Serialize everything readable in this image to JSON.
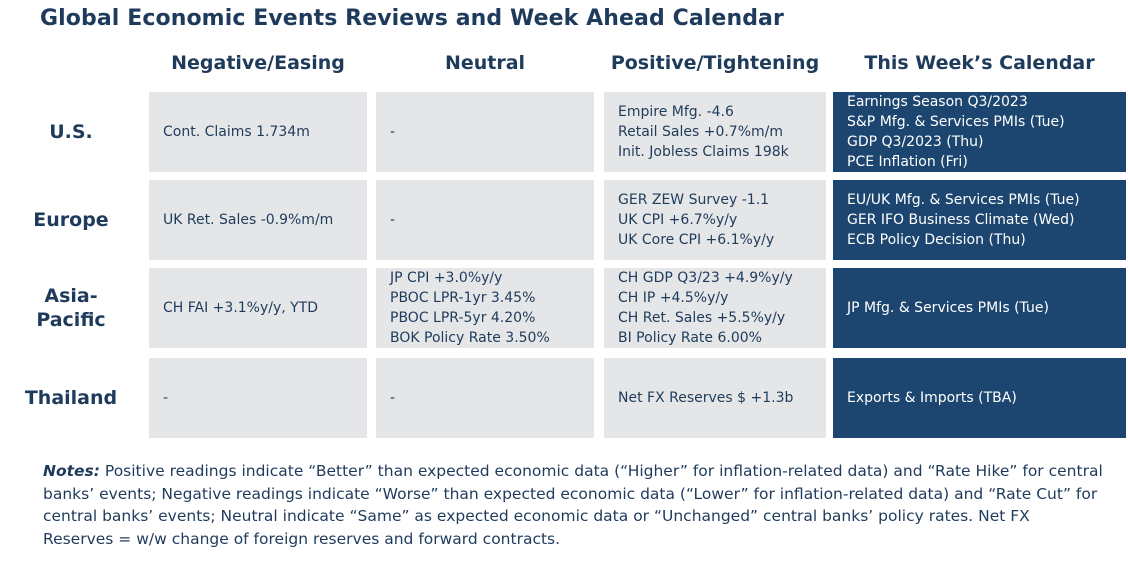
{
  "title": "Global Economic Events Reviews and Week Ahead Calendar",
  "columns": [
    "Negative/Easing",
    "Neutral",
    "Positive/Tightening",
    "This Week’s Calendar"
  ],
  "rows": [
    {
      "region": "U.S.",
      "negative": [
        "Cont. Claims 1.734m"
      ],
      "neutral": [
        "-"
      ],
      "positive": [
        "Empire Mfg. -4.6",
        "Retail Sales +0.7%m/m",
        "Init. Jobless Claims 198k"
      ],
      "calendar": [
        "Earnings Season Q3/2023",
        "S&P Mfg. & Services PMIs (Tue)",
        "GDP Q3/2023 (Thu)",
        "PCE Inflation (Fri)"
      ]
    },
    {
      "region": "Europe",
      "negative": [
        "UK Ret. Sales -0.9%m/m"
      ],
      "neutral": [
        "-"
      ],
      "positive": [
        "GER ZEW Survey -1.1",
        "UK CPI +6.7%y/y",
        "UK Core CPI +6.1%y/y"
      ],
      "calendar": [
        "EU/UK Mfg. & Services PMIs (Tue)",
        "GER IFO Business Climate (Wed)",
        "ECB Policy Decision (Thu)"
      ]
    },
    {
      "region_lines": [
        "Asia-",
        "Pacific"
      ],
      "negative": [
        "CH FAI +3.1%y/y, YTD"
      ],
      "neutral": [
        "JP CPI +3.0%y/y",
        "PBOC LPR-1yr 3.45%",
        "PBOC LPR-5yr 4.20%",
        "BOK Policy Rate 3.50%"
      ],
      "positive": [
        "CH GDP Q3/23 +4.9%y/y",
        "CH IP +4.5%y/y",
        "CH Ret. Sales +5.5%y/y",
        "BI Policy Rate 6.00%"
      ],
      "calendar": [
        "JP Mfg. & Services PMIs (Tue)"
      ]
    },
    {
      "region": "Thailand",
      "negative": [
        "-"
      ],
      "neutral": [
        "-"
      ],
      "positive": [
        "Net FX Reserves $ +1.3b"
      ],
      "calendar": [
        "Exports & Imports (TBA)"
      ]
    }
  ],
  "notes": {
    "label": "Notes:",
    "text": " Positive readings indicate “Better” than expected economic data (“Higher” for inflation-related data) and “Rate Hike” for central banks’ events; Negative readings indicate “Worse” than expected economic data (“Lower” for inflation-related data) and “Rate Cut” for central banks’ events; Neutral indicate “Same” as expected economic data or “Unchanged” central banks’ policy rates. Net FX Reserves = w/w change of foreign reserves and forward contracts."
  },
  "colors": {
    "text": "#1f3b5c",
    "cell_bg": "#e5e6e7",
    "calendar_bg": "#1c4670",
    "calendar_text": "#ffffff"
  }
}
